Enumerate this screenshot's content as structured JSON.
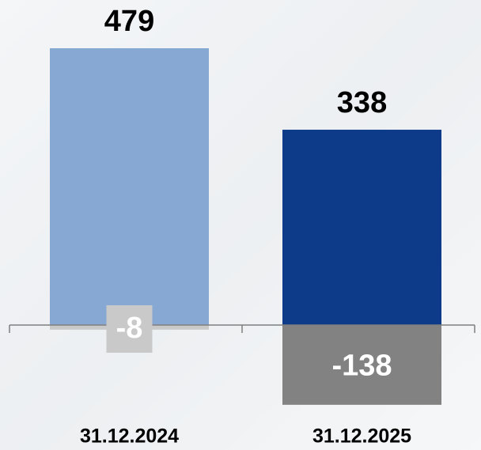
{
  "chart_data": {
    "type": "bar",
    "categories": [
      "31.12.2024",
      "31.12.2025"
    ],
    "series": [
      {
        "colors": [
          "#86a8d3",
          "#0d3a89"
        ],
        "values": [
          479,
          338
        ]
      },
      {
        "colors": [
          "#c9c9c9",
          "#828282"
        ],
        "values": [
          -8,
          -138
        ]
      }
    ]
  }
}
